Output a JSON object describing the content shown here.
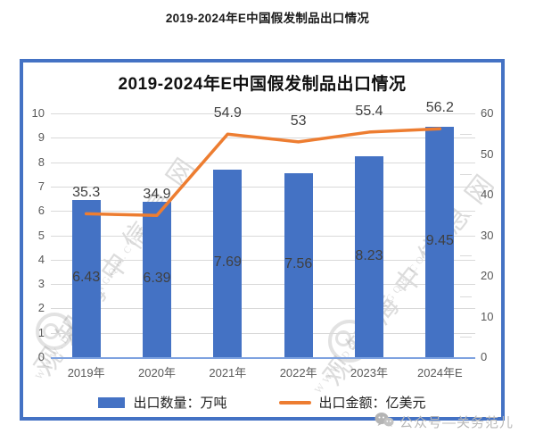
{
  "page_title": "2019-2024年E中国假发制品出口情况",
  "chart_data": {
    "type": "bar+line",
    "title": "2019-2024年E中国假发制品出口情况",
    "categories": [
      "2019年",
      "2020年",
      "2021年",
      "2022年",
      "2023年",
      "2024年E"
    ],
    "series": [
      {
        "name": "出口数量：万吨",
        "chart_type": "bar",
        "axis": "left",
        "color": "#4472C4",
        "values": [
          6.43,
          6.39,
          7.69,
          7.56,
          8.23,
          9.45
        ],
        "labels": [
          "6.43",
          "6.39",
          "7.69",
          "7.56",
          "8.23",
          "9.45"
        ]
      },
      {
        "name": "出口金额：亿美元",
        "chart_type": "line",
        "axis": "right",
        "color": "#ED7D31",
        "values": [
          35.3,
          34.9,
          54.9,
          53,
          55.4,
          56.2
        ],
        "labels": [
          "35.3",
          "34.9",
          "54.9",
          "53",
          "55.4",
          "56.2"
        ]
      }
    ],
    "left_axis": {
      "min": 0,
      "max": 10,
      "ticks": [
        0,
        1,
        2,
        3,
        4,
        5,
        6,
        7,
        8,
        9,
        10
      ]
    },
    "right_axis": {
      "min": 0,
      "max": 60,
      "ticks": [
        0,
        10,
        20,
        30,
        40,
        50,
        60
      ],
      "minor_step": 5
    },
    "grid": true,
    "legend_position": "bottom",
    "frame_color": "#4472C4"
  },
  "watermarks": {
    "left": {
      "text": "观知海中信息网",
      "subtext": "WWW.DONGFANGQB.COM"
    },
    "right": {
      "text": "观知海中信息网",
      "subtext": "WWW.DONGFANGQB.COM"
    }
  },
  "footer": {
    "label": "公众号—关务范儿"
  }
}
